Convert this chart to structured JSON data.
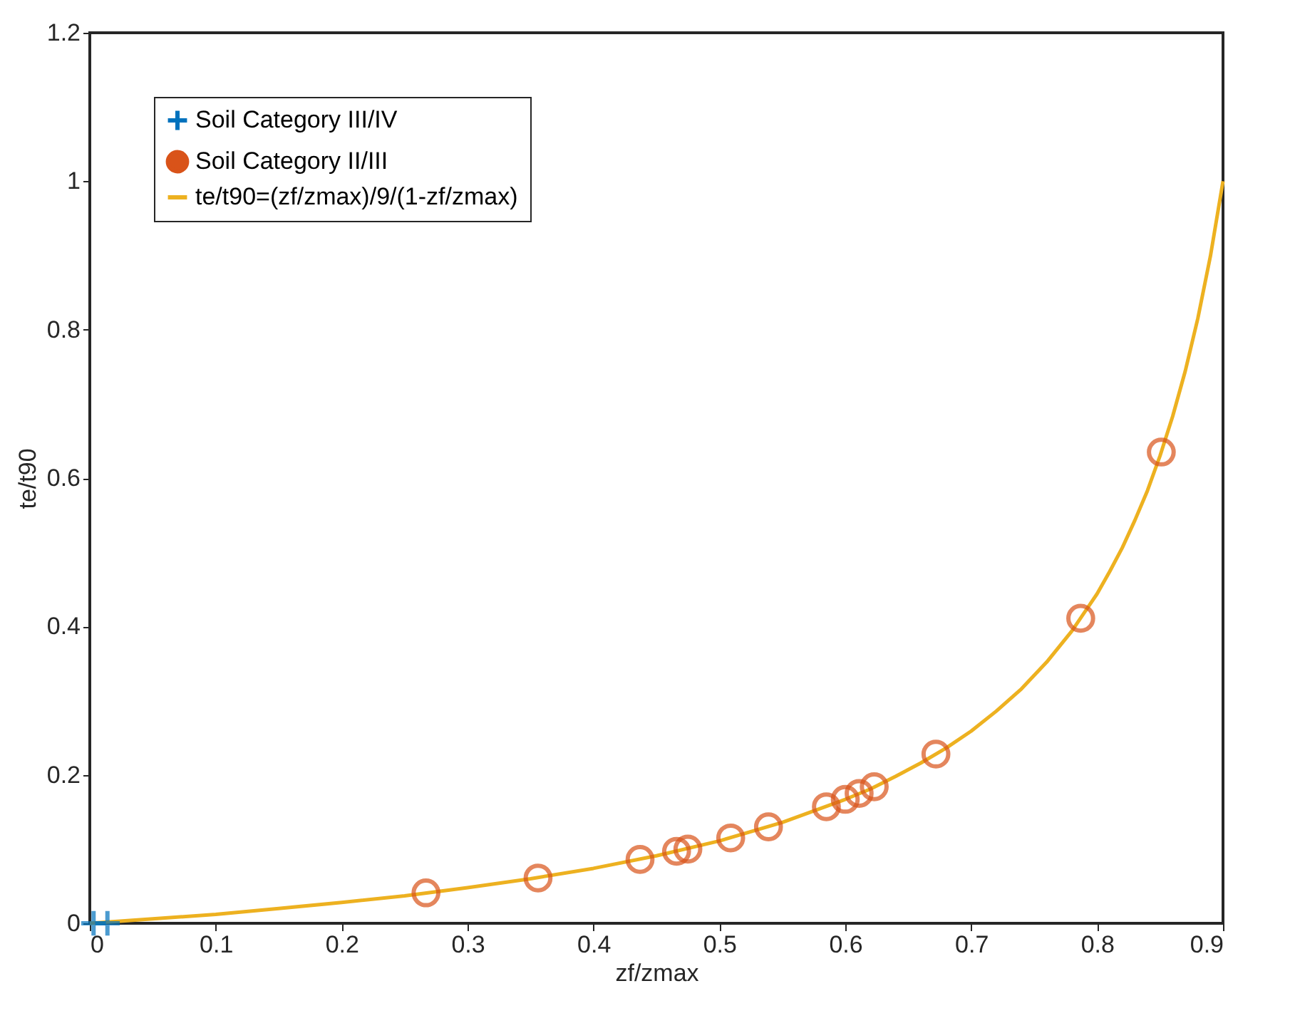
{
  "chart_data": {
    "type": "scatter",
    "xlabel": "zf/zmax",
    "ylabel": "te/t90",
    "xlim": [
      0,
      0.9
    ],
    "xticks": [
      0,
      0.1,
      0.2,
      0.3,
      0.4,
      0.5,
      0.6,
      0.7,
      0.8,
      0.9
    ],
    "ylim": [
      0,
      1.2
    ],
    "yticks": [
      0,
      0.2,
      0.4,
      0.6,
      0.8,
      1,
      1.2
    ],
    "grid": false,
    "legend": "top left",
    "series": [
      {
        "name": "Soil Category III/IV",
        "marker": "cross",
        "color": "#0072bd",
        "x": [
          0.003,
          0.014
        ],
        "values": [
          0,
          0
        ]
      },
      {
        "name": "Soil Category II/III",
        "marker": "circle",
        "color": "#d95319",
        "x": [
          0.267,
          0.356,
          0.437,
          0.466,
          0.475,
          0.509,
          0.539,
          0.585,
          0.6,
          0.611,
          0.623,
          0.672,
          0.787,
          0.851
        ],
        "values": [
          0.041,
          0.061,
          0.086,
          0.097,
          0.1,
          0.115,
          0.13,
          0.157,
          0.167,
          0.175,
          0.184,
          0.228,
          0.411,
          0.635
        ]
      },
      {
        "name": "te/t90=(zf/zmax)/9/(1-zf/zmax)",
        "type": "line",
        "marker": "none",
        "line_style": "solid",
        "color": "#edb120",
        "x": [
          0,
          0.05,
          0.1,
          0.15,
          0.2,
          0.25,
          0.3,
          0.35,
          0.4,
          0.45,
          0.5,
          0.55,
          0.6,
          0.62,
          0.64,
          0.66,
          0.68,
          0.7,
          0.72,
          0.74,
          0.76,
          0.78,
          0.8,
          0.81,
          0.82,
          0.83,
          0.84,
          0.85,
          0.86,
          0.87,
          0.88,
          0.89,
          0.9
        ],
        "values": [
          0,
          0.006,
          0.012,
          0.02,
          0.028,
          0.037,
          0.048,
          0.06,
          0.074,
          0.091,
          0.111,
          0.136,
          0.167,
          0.181,
          0.198,
          0.216,
          0.236,
          0.259,
          0.286,
          0.316,
          0.352,
          0.394,
          0.444,
          0.474,
          0.506,
          0.543,
          0.583,
          0.63,
          0.683,
          0.744,
          0.815,
          0.899,
          1.0
        ]
      }
    ]
  }
}
